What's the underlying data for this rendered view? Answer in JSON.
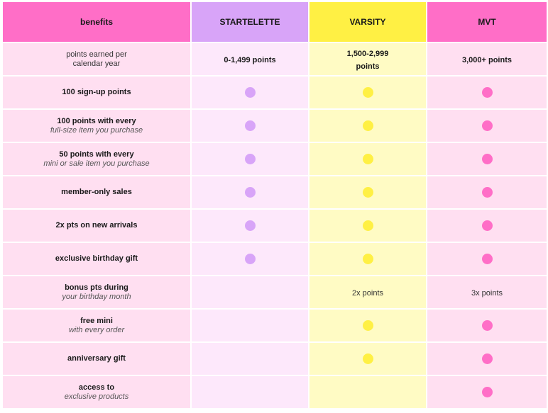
{
  "header": {
    "benefits": "benefits",
    "tier1": "STARTELETTE",
    "tier2": "VARSITY",
    "tier3": "MVT"
  },
  "colors": {
    "pink": "#ff6ec7",
    "purple": "#d8a4f8",
    "yellow": "#fff044"
  },
  "rows": [
    {
      "main": "points earned per",
      "sub": "calendar year",
      "values": [
        "0-1,499 points",
        "1,500-2,999\npoints",
        "3,000+ points"
      ]
    },
    {
      "main": "100 sign-up points",
      "sub": "",
      "dots": [
        true,
        true,
        true
      ]
    },
    {
      "main": "100 points with every",
      "sub": "full-size item you purchase",
      "dots": [
        true,
        true,
        true
      ]
    },
    {
      "main": "50 points with every",
      "sub": "mini or sale item you purchase",
      "dots": [
        true,
        true,
        true
      ]
    },
    {
      "main": "member-only sales",
      "sub": "",
      "dots": [
        true,
        true,
        true
      ]
    },
    {
      "main": "2x pts on new arrivals",
      "sub": "",
      "dots": [
        true,
        true,
        true
      ]
    },
    {
      "main": "exclusive birthday gift",
      "sub": "",
      "dots": [
        true,
        true,
        true
      ]
    },
    {
      "main": "bonus pts during",
      "sub": "your birthday month",
      "values": [
        "",
        "2x points",
        "3x points"
      ]
    },
    {
      "main": "free mini",
      "sub": "with every order",
      "dots": [
        false,
        true,
        true
      ]
    },
    {
      "main": "anniversary gift",
      "sub": "",
      "dots": [
        false,
        true,
        true
      ]
    },
    {
      "main": "access to",
      "sub": "exclusive products",
      "dots": [
        false,
        false,
        true
      ]
    }
  ]
}
